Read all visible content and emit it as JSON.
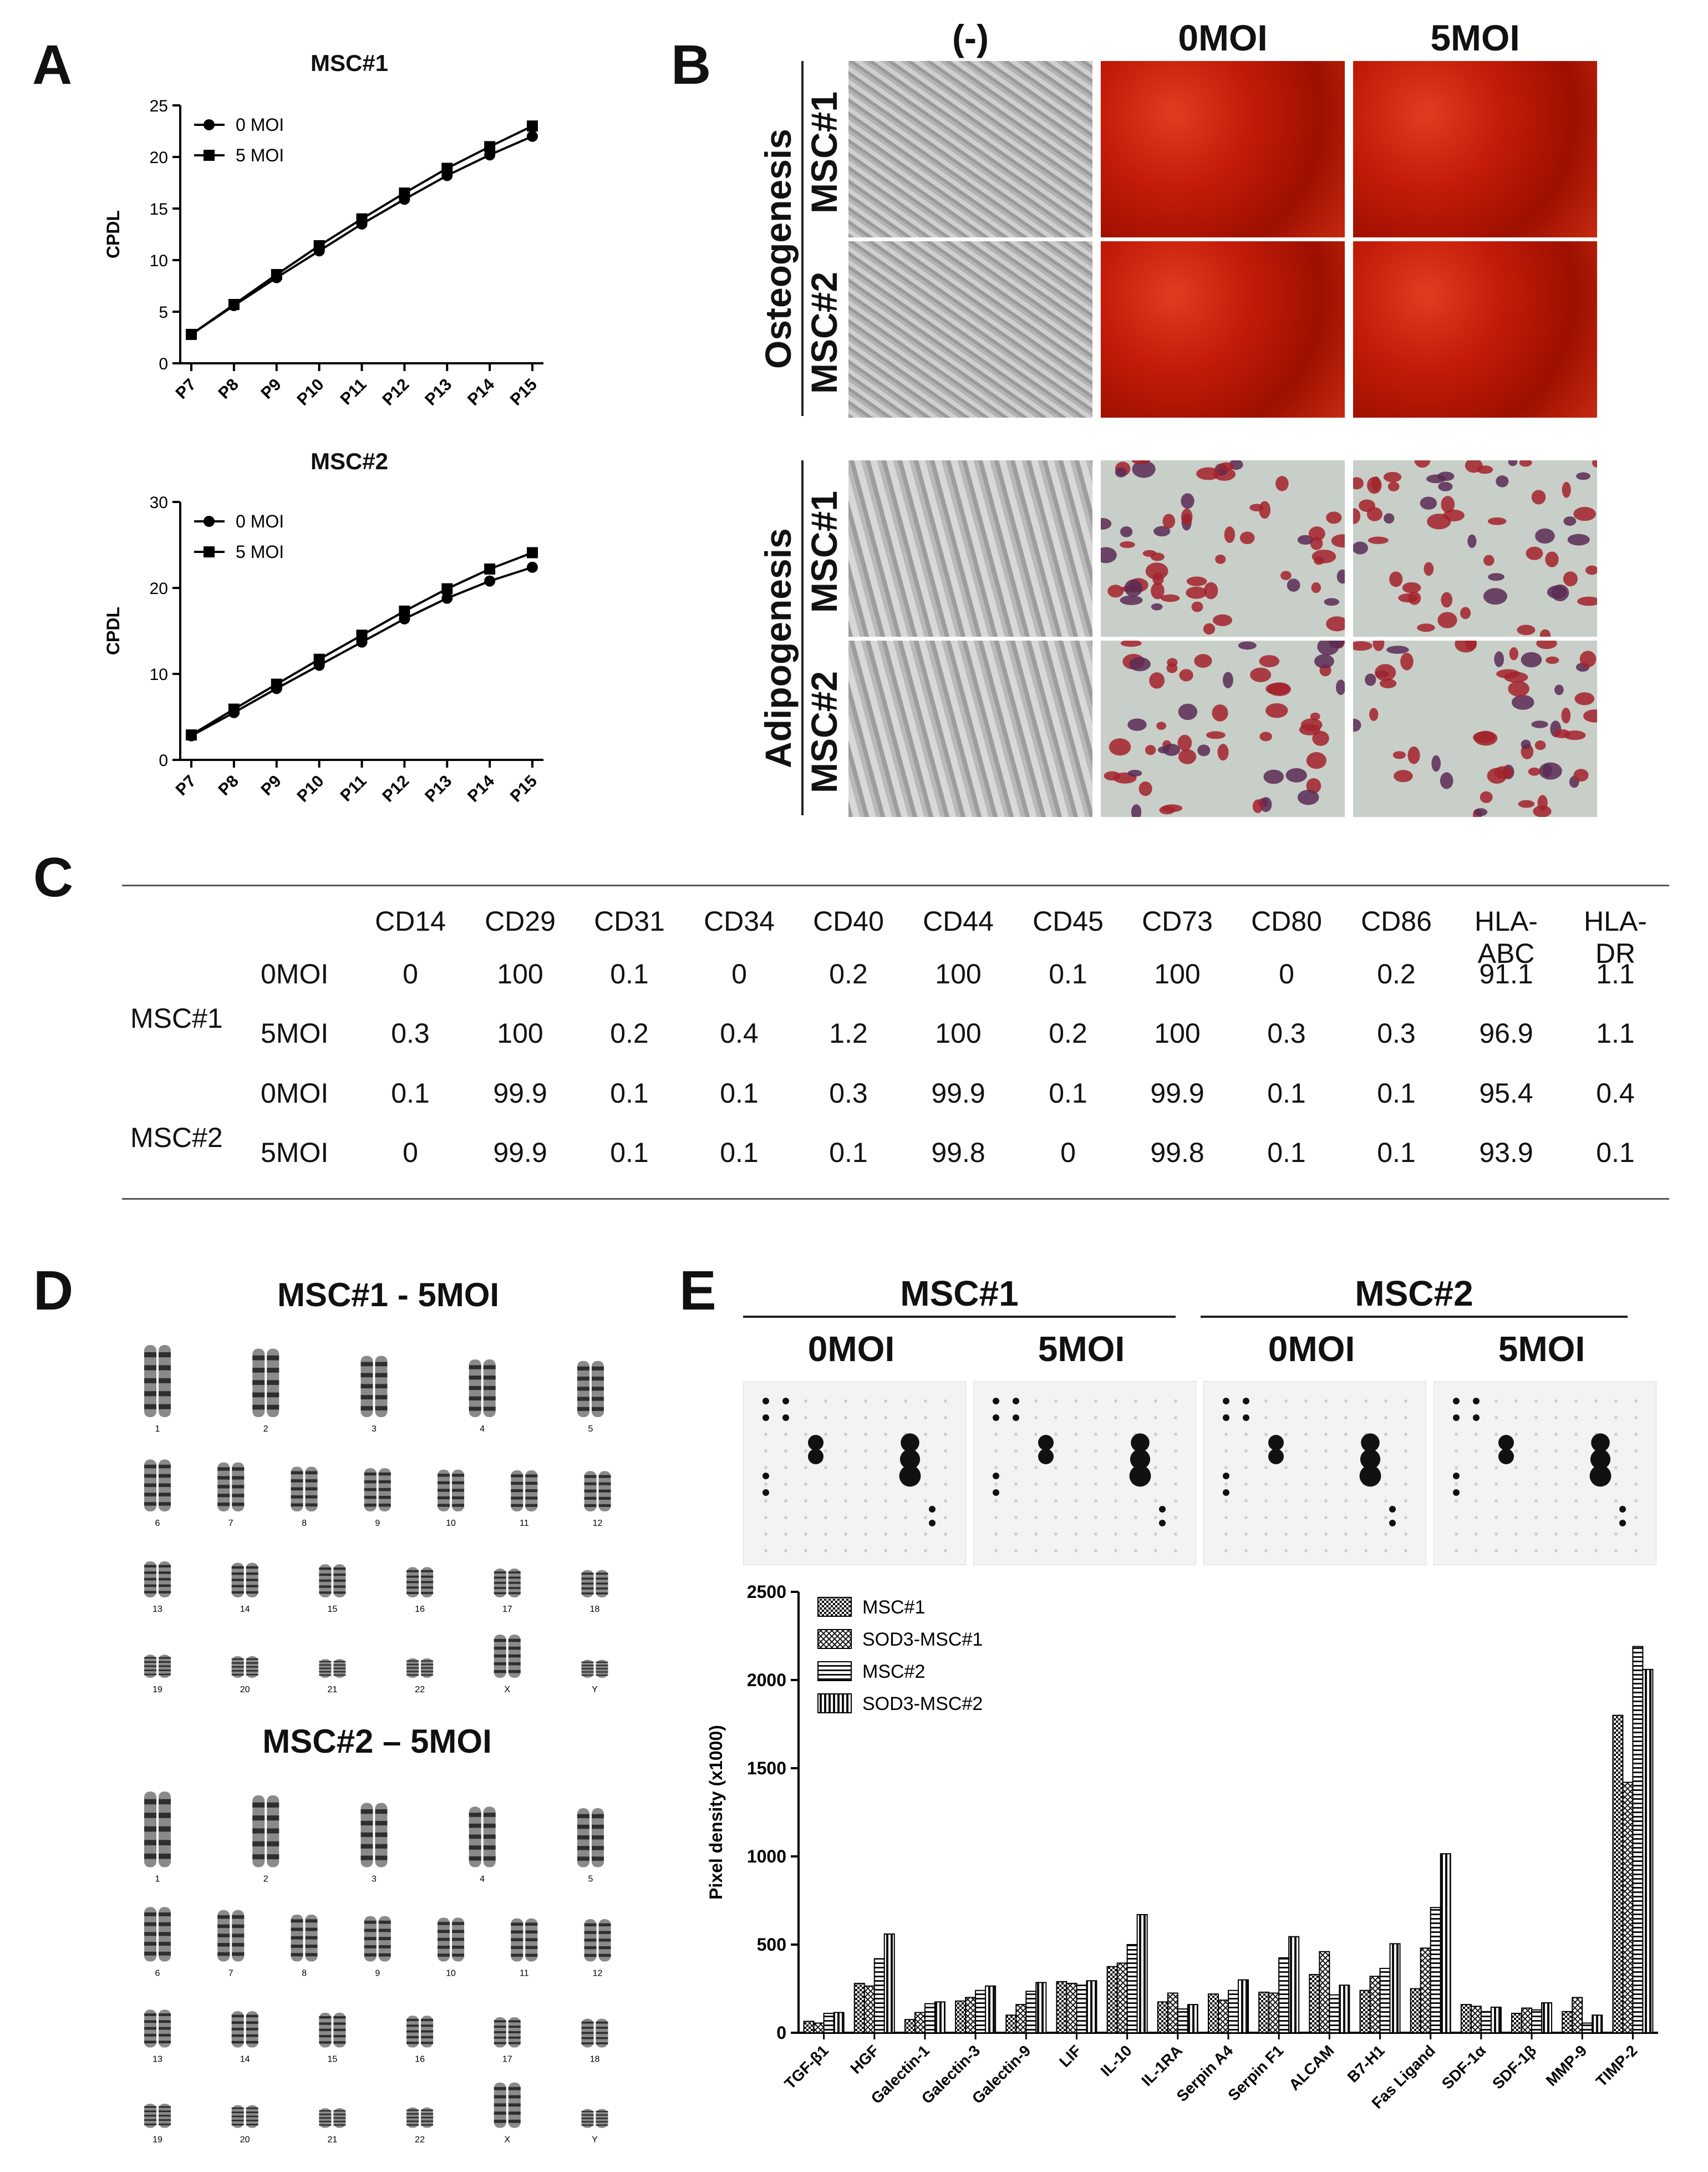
{
  "panels": {
    "A": "A",
    "B": "B",
    "C": "C",
    "D": "D",
    "E": "E"
  },
  "panelA": {
    "charts": [
      {
        "title": "MSC#1",
        "ylabel": "CPDL",
        "yticks": [
          "0",
          "5",
          "10",
          "15",
          "20",
          "25"
        ],
        "legend": [
          "0 MOI",
          "5 MOI"
        ]
      },
      {
        "title": "MSC#2",
        "ylabel": "CPDL",
        "yticks": [
          "0",
          "10",
          "20",
          "30"
        ],
        "legend": [
          "0 MOI",
          "5 MOI"
        ]
      }
    ]
  },
  "panelB": {
    "columns": [
      "(-)",
      "0MOI",
      "5MOI"
    ],
    "groups": [
      {
        "label": "Osteogenesis",
        "rows": [
          "MSC#1",
          "MSC#2"
        ]
      },
      {
        "label": "Adipogenesis",
        "rows": [
          "MSC#1",
          "MSC#2"
        ]
      }
    ]
  },
  "panelC": {
    "headers": [
      "CD14",
      "CD29",
      "CD31",
      "CD34",
      "CD40",
      "CD44",
      "CD45",
      "CD73",
      "CD80",
      "CD86",
      "HLA-\nABC",
      "HLA-\nDR"
    ],
    "groups": [
      {
        "name": "MSC#1",
        "rows": [
          {
            "cond": "0MOI",
            "values": [
              "0",
              "100",
              "0.1",
              "0",
              "0.2",
              "100",
              "0.1",
              "100",
              "0",
              "0.2",
              "91.1",
              "1.1"
            ]
          },
          {
            "cond": "5MOI",
            "values": [
              "0.3",
              "100",
              "0.2",
              "0.4",
              "1.2",
              "100",
              "0.2",
              "100",
              "0.3",
              "0.3",
              "96.9",
              "1.1"
            ]
          }
        ]
      },
      {
        "name": "MSC#2",
        "rows": [
          {
            "cond": "0MOI",
            "values": [
              "0.1",
              "99.9",
              "0.1",
              "0.1",
              "0.3",
              "99.9",
              "0.1",
              "99.9",
              "0.1",
              "0.1",
              "95.4",
              "0.4"
            ]
          },
          {
            "cond": "5MOI",
            "values": [
              "0",
              "99.9",
              "0.1",
              "0.1",
              "0.1",
              "99.8",
              "0",
              "99.8",
              "0.1",
              "0.1",
              "93.9",
              "0.1"
            ]
          }
        ]
      }
    ]
  },
  "panelD": {
    "karyotypes": [
      {
        "title": "MSC#1 - 5MOI",
        "labels": [
          "1",
          "2",
          "3",
          "4",
          "5",
          "6",
          "7",
          "8",
          "9",
          "10",
          "11",
          "12",
          "13",
          "14",
          "15",
          "16",
          "17",
          "18",
          "19",
          "20",
          "21",
          "22",
          "X",
          "Y"
        ]
      },
      {
        "title": "MSC#2 – 5MOI",
        "labels": [
          "1",
          "2",
          "3",
          "4",
          "5",
          "6",
          "7",
          "8",
          "9",
          "10",
          "11",
          "12",
          "13",
          "14",
          "15",
          "16",
          "17",
          "18",
          "19",
          "20",
          "21",
          "22",
          "X",
          "Y"
        ]
      }
    ]
  },
  "panelE": {
    "groups": [
      "MSC#1",
      "MSC#2"
    ],
    "conditions": [
      "0MOI",
      "5MOI",
      "0MOI",
      "5MOI"
    ]
  },
  "chart_data": [
    {
      "type": "line",
      "title": "MSC#1",
      "ylabel": "CPDL",
      "xlabel": "",
      "categories": [
        "P7",
        "P8",
        "P9",
        "P10",
        "P11",
        "P12",
        "P13",
        "P14",
        "P15"
      ],
      "ylim": [
        0,
        25
      ],
      "series": [
        {
          "name": "0 MOI",
          "marker": "circle",
          "values": [
            2.8,
            5.6,
            8.3,
            10.9,
            13.5,
            15.9,
            18.2,
            20.2,
            22.0
          ]
        },
        {
          "name": "5 MOI",
          "marker": "square",
          "values": [
            2.8,
            5.7,
            8.6,
            11.4,
            14.0,
            16.5,
            18.9,
            21.0,
            23.0
          ]
        }
      ]
    },
    {
      "type": "line",
      "title": "MSC#2",
      "ylabel": "CPDL",
      "xlabel": "",
      "categories": [
        "P7",
        "P8",
        "P9",
        "P10",
        "P11",
        "P12",
        "P13",
        "P14",
        "P15"
      ],
      "ylim": [
        0,
        30
      ],
      "series": [
        {
          "name": "0 MOI",
          "marker": "circle",
          "values": [
            2.8,
            5.5,
            8.3,
            11.0,
            13.7,
            16.4,
            18.8,
            20.8,
            22.4
          ]
        },
        {
          "name": "5 MOI",
          "marker": "square",
          "values": [
            2.9,
            5.9,
            8.8,
            11.7,
            14.5,
            17.3,
            19.9,
            22.2,
            24.1
          ]
        }
      ]
    },
    {
      "type": "bar",
      "title": "",
      "xlabel": "",
      "ylabel": "Pixel density (x1000)",
      "ylim": [
        0,
        2500
      ],
      "yticks": [
        "0",
        "500",
        "1000",
        "1500",
        "2000",
        "2500"
      ],
      "legend": "top-left",
      "categories": [
        "TGF-β1",
        "HGF",
        "Galectin-1",
        "Galectin-3",
        "Galectin-9",
        "LIF",
        "IL-10",
        "IL-1RA",
        "Serpin A4",
        "Serpin F1",
        "ALCAM",
        "B7-H1",
        "Fas Ligand",
        "SDF-1α",
        "SDF-1β",
        "MMP-9",
        "TIMP-2"
      ],
      "series": [
        {
          "name": "MSC#1",
          "pattern": "checker",
          "values": [
            65,
            280,
            75,
            180,
            100,
            290,
            375,
            175,
            220,
            230,
            330,
            240,
            250,
            160,
            110,
            120,
            1800
          ]
        },
        {
          "name": "SOD3-MSC#1",
          "pattern": "cross",
          "values": [
            55,
            265,
            115,
            200,
            160,
            280,
            395,
            225,
            185,
            225,
            460,
            320,
            480,
            150,
            140,
            200,
            1420
          ]
        },
        {
          "name": "MSC#2",
          "pattern": "horizontal",
          "values": [
            110,
            420,
            165,
            240,
            235,
            270,
            500,
            135,
            240,
            425,
            215,
            365,
            710,
            120,
            130,
            55,
            2190
          ]
        },
        {
          "name": "SOD3-MSC#2",
          "pattern": "vertical",
          "values": [
            115,
            560,
            175,
            265,
            285,
            295,
            670,
            160,
            300,
            545,
            270,
            505,
            1015,
            145,
            170,
            100,
            2060
          ]
        }
      ]
    }
  ]
}
